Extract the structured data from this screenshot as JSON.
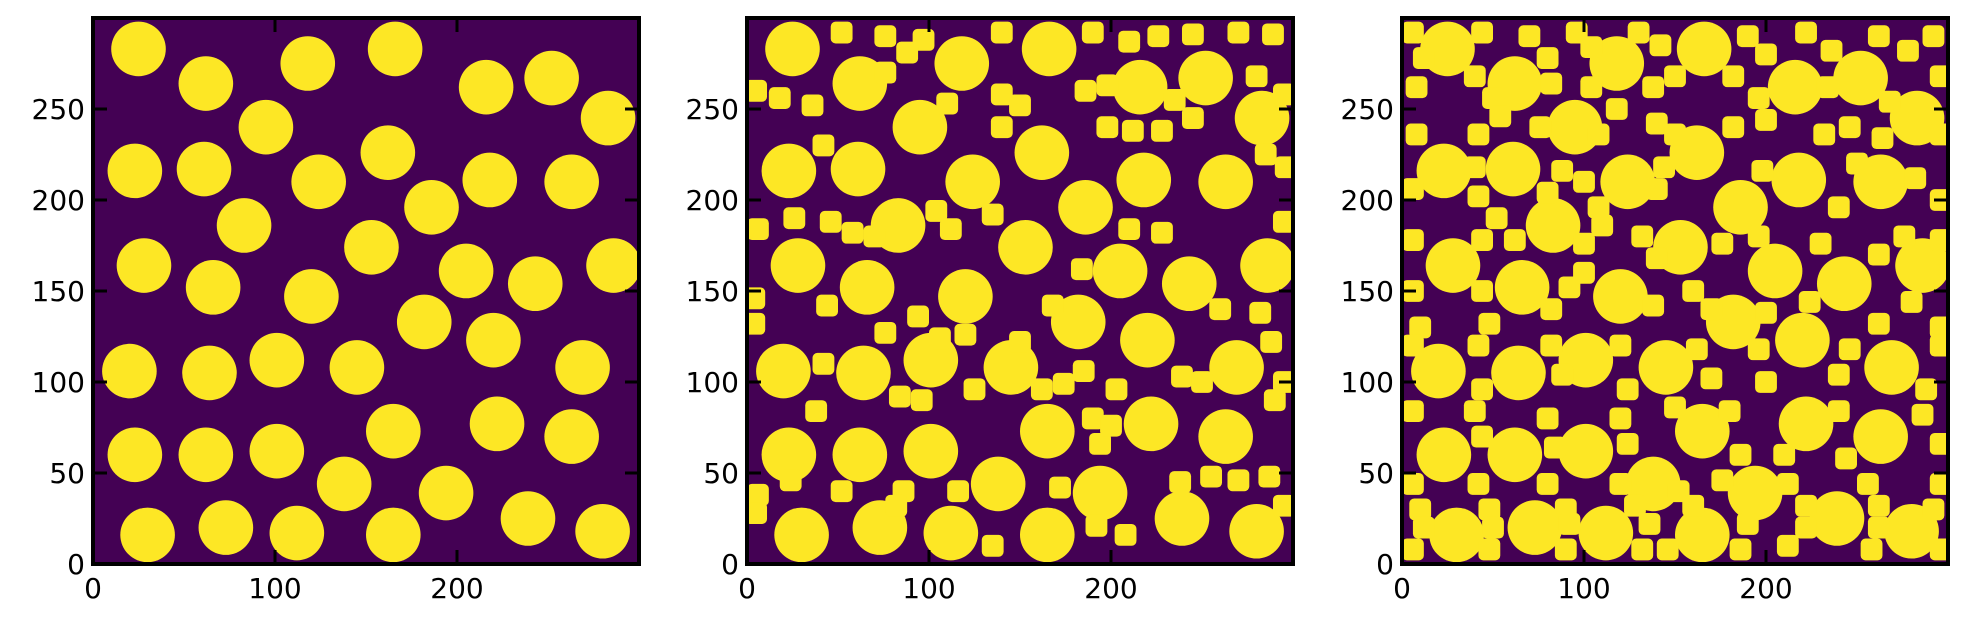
{
  "figure": {
    "background": "#ffffff",
    "particle_color": "#fde725",
    "matrix_color": "#440154"
  },
  "chart_data": [
    {
      "type": "heatmap",
      "colormap": "viridis",
      "binary": true,
      "xlim": [
        0,
        300
      ],
      "ylim": [
        0,
        300
      ],
      "xticks": [
        0,
        100,
        200
      ],
      "yticks": [
        0,
        50,
        100,
        150,
        200,
        250
      ],
      "tick_direction": "in",
      "grid": false,
      "title": "",
      "xlabel": "",
      "ylabel": "",
      "large_radius": 15,
      "small_radius": 0,
      "large_particles": [
        [
          25,
          283
        ],
        [
          62,
          264
        ],
        [
          118,
          275
        ],
        [
          166,
          283
        ],
        [
          216,
          262
        ],
        [
          252,
          267
        ],
        [
          283,
          245
        ],
        [
          95,
          240
        ],
        [
          23,
          216
        ],
        [
          61,
          217
        ],
        [
          124,
          210
        ],
        [
          162,
          226
        ],
        [
          186,
          196
        ],
        [
          218,
          211
        ],
        [
          263,
          210
        ],
        [
          83,
          186
        ],
        [
          153,
          174
        ],
        [
          28,
          164
        ],
        [
          66,
          152
        ],
        [
          120,
          147
        ],
        [
          205,
          161
        ],
        [
          243,
          154
        ],
        [
          286,
          164
        ],
        [
          182,
          133
        ],
        [
          220,
          123
        ],
        [
          20,
          106
        ],
        [
          64,
          105
        ],
        [
          101,
          112
        ],
        [
          145,
          108
        ],
        [
          269,
          108
        ],
        [
          222,
          77
        ],
        [
          263,
          70
        ],
        [
          165,
          73
        ],
        [
          23,
          60
        ],
        [
          62,
          60
        ],
        [
          101,
          62
        ],
        [
          138,
          44
        ],
        [
          194,
          39
        ],
        [
          30,
          16
        ],
        [
          73,
          20
        ],
        [
          112,
          17
        ],
        [
          165,
          16
        ],
        [
          239,
          25
        ],
        [
          280,
          18
        ]
      ]
    },
    {
      "type": "heatmap",
      "colormap": "viridis",
      "binary": true,
      "xlim": [
        0,
        300
      ],
      "ylim": [
        0,
        300
      ],
      "xticks": [
        0,
        100,
        200
      ],
      "yticks": [
        0,
        50,
        100,
        150,
        200,
        250
      ],
      "tick_direction": "in",
      "grid": false,
      "title": "",
      "xlabel": "",
      "ylabel": "",
      "large_radius": 15,
      "small_radius": 6,
      "large_particles": [
        [
          25,
          283
        ],
        [
          62,
          264
        ],
        [
          118,
          275
        ],
        [
          166,
          283
        ],
        [
          216,
          262
        ],
        [
          252,
          267
        ],
        [
          283,
          245
        ],
        [
          95,
          240
        ],
        [
          23,
          216
        ],
        [
          61,
          217
        ],
        [
          124,
          210
        ],
        [
          162,
          226
        ],
        [
          186,
          196
        ],
        [
          218,
          211
        ],
        [
          263,
          210
        ],
        [
          83,
          186
        ],
        [
          153,
          174
        ],
        [
          28,
          164
        ],
        [
          66,
          152
        ],
        [
          120,
          147
        ],
        [
          205,
          161
        ],
        [
          243,
          154
        ],
        [
          286,
          164
        ],
        [
          182,
          133
        ],
        [
          220,
          123
        ],
        [
          20,
          106
        ],
        [
          64,
          105
        ],
        [
          101,
          112
        ],
        [
          145,
          108
        ],
        [
          269,
          108
        ],
        [
          222,
          77
        ],
        [
          263,
          70
        ],
        [
          165,
          73
        ],
        [
          23,
          60
        ],
        [
          62,
          60
        ],
        [
          101,
          62
        ],
        [
          138,
          44
        ],
        [
          194,
          39
        ],
        [
          30,
          16
        ],
        [
          73,
          20
        ],
        [
          112,
          17
        ],
        [
          165,
          16
        ],
        [
          239,
          25
        ],
        [
          280,
          18
        ]
      ],
      "small_particles": [
        [
          52,
          292
        ],
        [
          76,
          290
        ],
        [
          97,
          288
        ],
        [
          140,
          292
        ],
        [
          190,
          292
        ],
        [
          210,
          287
        ],
        [
          226,
          290
        ],
        [
          245,
          291
        ],
        [
          270,
          292
        ],
        [
          289,
          291
        ],
        [
          5,
          260
        ],
        [
          18,
          256
        ],
        [
          36,
          252
        ],
        [
          76,
          270
        ],
        [
          88,
          281
        ],
        [
          110,
          253
        ],
        [
          140,
          258
        ],
        [
          150,
          252
        ],
        [
          186,
          260
        ],
        [
          198,
          263
        ],
        [
          235,
          255
        ],
        [
          280,
          268
        ],
        [
          295,
          258
        ],
        [
          42,
          230
        ],
        [
          140,
          240
        ],
        [
          198,
          240
        ],
        [
          212,
          238
        ],
        [
          228,
          238
        ],
        [
          245,
          245
        ],
        [
          285,
          225
        ],
        [
          296,
          218
        ],
        [
          6,
          184
        ],
        [
          26,
          190
        ],
        [
          46,
          188
        ],
        [
          58,
          182
        ],
        [
          70,
          180
        ],
        [
          104,
          194
        ],
        [
          112,
          184
        ],
        [
          135,
          192
        ],
        [
          210,
          184
        ],
        [
          228,
          182
        ],
        [
          295,
          188
        ],
        [
          4,
          146
        ],
        [
          44,
          142
        ],
        [
          94,
          136
        ],
        [
          106,
          124
        ],
        [
          120,
          126
        ],
        [
          168,
          142
        ],
        [
          184,
          162
        ],
        [
          260,
          140
        ],
        [
          282,
          138
        ],
        [
          288,
          122
        ],
        [
          4,
          132
        ],
        [
          42,
          110
        ],
        [
          76,
          127
        ],
        [
          150,
          122
        ],
        [
          162,
          96
        ],
        [
          174,
          99
        ],
        [
          185,
          106
        ],
        [
          203,
          96
        ],
        [
          239,
          103
        ],
        [
          250,
          100
        ],
        [
          295,
          100
        ],
        [
          38,
          84
        ],
        [
          84,
          92
        ],
        [
          96,
          90
        ],
        [
          125,
          96
        ],
        [
          190,
          80
        ],
        [
          194,
          66
        ],
        [
          200,
          76
        ],
        [
          290,
          90
        ],
        [
          6,
          38
        ],
        [
          24,
          46
        ],
        [
          52,
          40
        ],
        [
          86,
          40
        ],
        [
          116,
          40
        ],
        [
          172,
          42
        ],
        [
          192,
          21
        ],
        [
          238,
          45
        ],
        [
          255,
          48
        ],
        [
          270,
          46
        ],
        [
          287,
          48
        ],
        [
          295,
          32
        ],
        [
          208,
          16
        ],
        [
          5,
          28
        ],
        [
          82,
          32
        ],
        [
          135,
          10
        ]
      ]
    },
    {
      "type": "heatmap",
      "colormap": "viridis",
      "binary": true,
      "xlim": [
        0,
        300
      ],
      "ylim": [
        0,
        300
      ],
      "xticks": [
        0,
        100,
        200
      ],
      "yticks": [
        0,
        50,
        100,
        150,
        200,
        250
      ],
      "tick_direction": "in",
      "grid": false,
      "title": "",
      "xlabel": "",
      "ylabel": "",
      "large_radius": 15,
      "small_radius": 6,
      "large_particles": [
        [
          25,
          283
        ],
        [
          62,
          264
        ],
        [
          118,
          275
        ],
        [
          166,
          283
        ],
        [
          216,
          262
        ],
        [
          252,
          267
        ],
        [
          283,
          245
        ],
        [
          95,
          240
        ],
        [
          23,
          216
        ],
        [
          61,
          217
        ],
        [
          124,
          210
        ],
        [
          162,
          226
        ],
        [
          186,
          196
        ],
        [
          218,
          211
        ],
        [
          263,
          210
        ],
        [
          83,
          186
        ],
        [
          153,
          174
        ],
        [
          28,
          164
        ],
        [
          66,
          152
        ],
        [
          120,
          147
        ],
        [
          205,
          161
        ],
        [
          243,
          154
        ],
        [
          286,
          164
        ],
        [
          182,
          133
        ],
        [
          220,
          123
        ],
        [
          20,
          106
        ],
        [
          64,
          105
        ],
        [
          101,
          112
        ],
        [
          145,
          108
        ],
        [
          269,
          108
        ],
        [
          222,
          77
        ],
        [
          263,
          70
        ],
        [
          165,
          73
        ],
        [
          23,
          60
        ],
        [
          62,
          60
        ],
        [
          101,
          62
        ],
        [
          138,
          44
        ],
        [
          194,
          39
        ],
        [
          30,
          16
        ],
        [
          73,
          20
        ],
        [
          112,
          17
        ],
        [
          165,
          16
        ],
        [
          239,
          25
        ],
        [
          280,
          18
        ]
      ],
      "small_particles": [
        [
          6,
          292
        ],
        [
          12,
          278
        ],
        [
          44,
          292
        ],
        [
          70,
          290
        ],
        [
          80,
          278
        ],
        [
          96,
          292
        ],
        [
          104,
          284
        ],
        [
          130,
          292
        ],
        [
          142,
          285
        ],
        [
          190,
          290
        ],
        [
          200,
          280
        ],
        [
          222,
          292
        ],
        [
          236,
          282
        ],
        [
          262,
          290
        ],
        [
          278,
          282
        ],
        [
          292,
          290
        ],
        [
          8,
          262
        ],
        [
          40,
          268
        ],
        [
          50,
          256
        ],
        [
          82,
          264
        ],
        [
          104,
          262
        ],
        [
          138,
          262
        ],
        [
          150,
          268
        ],
        [
          182,
          268
        ],
        [
          196,
          256
        ],
        [
          234,
          262
        ],
        [
          268,
          254
        ],
        [
          296,
          268
        ],
        [
          8,
          236
        ],
        [
          42,
          236
        ],
        [
          54,
          246
        ],
        [
          76,
          240
        ],
        [
          108,
          236
        ],
        [
          118,
          250
        ],
        [
          140,
          242
        ],
        [
          150,
          236
        ],
        [
          182,
          240
        ],
        [
          200,
          244
        ],
        [
          232,
          236
        ],
        [
          246,
          240
        ],
        [
          264,
          234
        ],
        [
          296,
          236
        ],
        [
          6,
          206
        ],
        [
          42,
          202
        ],
        [
          40,
          218
        ],
        [
          80,
          204
        ],
        [
          88,
          216
        ],
        [
          100,
          210
        ],
        [
          108,
          196
        ],
        [
          140,
          206
        ],
        [
          144,
          218
        ],
        [
          198,
          216
        ],
        [
          240,
          196
        ],
        [
          250,
          220
        ],
        [
          282,
          212
        ],
        [
          296,
          200
        ],
        [
          6,
          178
        ],
        [
          44,
          178
        ],
        [
          52,
          190
        ],
        [
          62,
          178
        ],
        [
          100,
          176
        ],
        [
          110,
          186
        ],
        [
          132,
          180
        ],
        [
          140,
          168
        ],
        [
          176,
          176
        ],
        [
          196,
          180
        ],
        [
          230,
          176
        ],
        [
          262,
          170
        ],
        [
          276,
          180
        ],
        [
          296,
          178
        ],
        [
          6,
          150
        ],
        [
          10,
          130
        ],
        [
          44,
          150
        ],
        [
          48,
          132
        ],
        [
          82,
          140
        ],
        [
          92,
          152
        ],
        [
          100,
          160
        ],
        [
          138,
          142
        ],
        [
          160,
          150
        ],
        [
          170,
          140
        ],
        [
          200,
          138
        ],
        [
          224,
          144
        ],
        [
          262,
          132
        ],
        [
          280,
          144
        ],
        [
          296,
          130
        ],
        [
          6,
          120
        ],
        [
          42,
          120
        ],
        [
          44,
          96
        ],
        [
          82,
          120
        ],
        [
          88,
          104
        ],
        [
          120,
          120
        ],
        [
          124,
          96
        ],
        [
          162,
          118
        ],
        [
          170,
          102
        ],
        [
          196,
          118
        ],
        [
          200,
          100
        ],
        [
          240,
          104
        ],
        [
          246,
          118
        ],
        [
          288,
          96
        ],
        [
          296,
          120
        ],
        [
          6,
          84
        ],
        [
          40,
          84
        ],
        [
          44,
          70
        ],
        [
          80,
          80
        ],
        [
          84,
          64
        ],
        [
          120,
          80
        ],
        [
          124,
          66
        ],
        [
          150,
          86
        ],
        [
          180,
          84
        ],
        [
          186,
          60
        ],
        [
          210,
          60
        ],
        [
          240,
          84
        ],
        [
          244,
          58
        ],
        [
          286,
          82
        ],
        [
          296,
          66
        ],
        [
          6,
          44
        ],
        [
          10,
          30
        ],
        [
          42,
          44
        ],
        [
          48,
          30
        ],
        [
          80,
          44
        ],
        [
          90,
          30
        ],
        [
          120,
          44
        ],
        [
          128,
          32
        ],
        [
          152,
          40
        ],
        [
          160,
          32
        ],
        [
          176,
          46
        ],
        [
          212,
          44
        ],
        [
          222,
          32
        ],
        [
          256,
          44
        ],
        [
          262,
          32
        ],
        [
          296,
          44
        ],
        [
          292,
          30
        ],
        [
          6,
          8
        ],
        [
          12,
          20
        ],
        [
          48,
          8
        ],
        [
          50,
          20
        ],
        [
          90,
          8
        ],
        [
          92,
          22
        ],
        [
          132,
          8
        ],
        [
          136,
          22
        ],
        [
          146,
          8
        ],
        [
          186,
          8
        ],
        [
          190,
          22
        ],
        [
          212,
          10
        ],
        [
          222,
          20
        ],
        [
          258,
          8
        ],
        [
          262,
          20
        ],
        [
          296,
          8
        ]
      ]
    }
  ]
}
